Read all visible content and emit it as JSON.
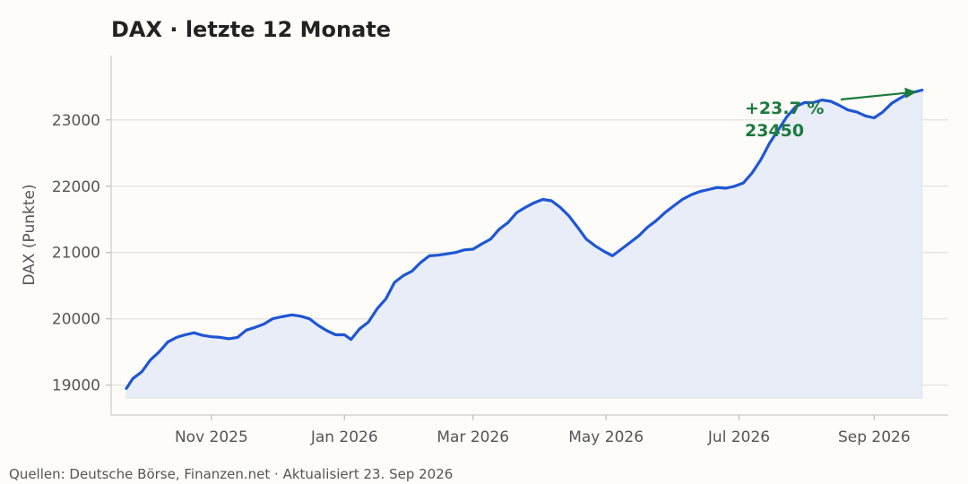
{
  "chart_data": {
    "type": "line",
    "title": "DAX · letzte 12 Monate",
    "ylabel": "DAX (Punkte)",
    "xlabel": "",
    "ylim": [
      18550,
      23970
    ],
    "yticks": [
      19000,
      20000,
      21000,
      22000,
      23000
    ],
    "xlim": [
      "2025-09-16",
      "2026-10-05"
    ],
    "xticks": [
      {
        "date": "2025-11-01",
        "label": "Nov 2025"
      },
      {
        "date": "2026-01-01",
        "label": "Jan 2026"
      },
      {
        "date": "2026-03-01",
        "label": "Mar 2026"
      },
      {
        "date": "2026-05-01",
        "label": "May 2026"
      },
      {
        "date": "2026-07-01",
        "label": "Jul 2026"
      },
      {
        "date": "2026-09-01",
        "label": "Sep 2026"
      }
    ],
    "grid": "horizontal",
    "line_color": "#1f56d4",
    "fill_color": "#e9edf8",
    "annotation_color": "#1b7a3e",
    "annotation": {
      "lines": [
        "+23.7 %",
        "23450"
      ],
      "date": "2026-09-23",
      "value": 23450
    },
    "series": [
      {
        "points": [
          [
            "2025-09-23",
            18950
          ],
          [
            "2025-09-26",
            19100
          ],
          [
            "2025-09-30",
            19200
          ],
          [
            "2025-10-04",
            19380
          ],
          [
            "2025-10-08",
            19500
          ],
          [
            "2025-10-12",
            19650
          ],
          [
            "2025-10-16",
            19720
          ],
          [
            "2025-10-20",
            19760
          ],
          [
            "2025-10-24",
            19790
          ],
          [
            "2025-10-28",
            19750
          ],
          [
            "2025-11-01",
            19730
          ],
          [
            "2025-11-05",
            19720
          ],
          [
            "2025-11-09",
            19700
          ],
          [
            "2025-11-13",
            19720
          ],
          [
            "2025-11-17",
            19830
          ],
          [
            "2025-11-21",
            19870
          ],
          [
            "2025-11-25",
            19920
          ],
          [
            "2025-11-29",
            20000
          ],
          [
            "2025-12-03",
            20030
          ],
          [
            "2025-12-08",
            20060
          ],
          [
            "2025-12-12",
            20040
          ],
          [
            "2025-12-16",
            20000
          ],
          [
            "2025-12-20",
            19900
          ],
          [
            "2025-12-24",
            19820
          ],
          [
            "2025-12-28",
            19760
          ],
          [
            "2026-01-01",
            19760
          ],
          [
            "2026-01-04",
            19690
          ],
          [
            "2026-01-08",
            19850
          ],
          [
            "2026-01-12",
            19950
          ],
          [
            "2026-01-16",
            20150
          ],
          [
            "2026-01-20",
            20300
          ],
          [
            "2026-01-24",
            20550
          ],
          [
            "2026-01-28",
            20650
          ],
          [
            "2026-02-01",
            20720
          ],
          [
            "2026-02-05",
            20850
          ],
          [
            "2026-02-09",
            20950
          ],
          [
            "2026-02-13",
            20960
          ],
          [
            "2026-02-17",
            20980
          ],
          [
            "2026-02-21",
            21000
          ],
          [
            "2026-02-25",
            21040
          ],
          [
            "2026-03-01",
            21050
          ],
          [
            "2026-03-05",
            21130
          ],
          [
            "2026-03-09",
            21200
          ],
          [
            "2026-03-13",
            21350
          ],
          [
            "2026-03-17",
            21450
          ],
          [
            "2026-03-21",
            21600
          ],
          [
            "2026-03-25",
            21680
          ],
          [
            "2026-03-29",
            21750
          ],
          [
            "2026-04-02",
            21800
          ],
          [
            "2026-04-06",
            21780
          ],
          [
            "2026-04-10",
            21680
          ],
          [
            "2026-04-14",
            21550
          ],
          [
            "2026-04-18",
            21380
          ],
          [
            "2026-04-22",
            21200
          ],
          [
            "2026-04-26",
            21100
          ],
          [
            "2026-04-30",
            21020
          ],
          [
            "2026-05-04",
            20950
          ],
          [
            "2026-05-08",
            21050
          ],
          [
            "2026-05-12",
            21150
          ],
          [
            "2026-05-16",
            21250
          ],
          [
            "2026-05-20",
            21380
          ],
          [
            "2026-05-24",
            21480
          ],
          [
            "2026-05-28",
            21600
          ],
          [
            "2026-06-01",
            21700
          ],
          [
            "2026-06-05",
            21800
          ],
          [
            "2026-06-09",
            21870
          ],
          [
            "2026-06-13",
            21920
          ],
          [
            "2026-06-17",
            21950
          ],
          [
            "2026-06-21",
            21980
          ],
          [
            "2026-06-25",
            21970
          ],
          [
            "2026-06-29",
            22000
          ],
          [
            "2026-07-03",
            22050
          ],
          [
            "2026-07-07",
            22200
          ],
          [
            "2026-07-11",
            22400
          ],
          [
            "2026-07-15",
            22650
          ],
          [
            "2026-07-19",
            22850
          ],
          [
            "2026-07-23",
            23050
          ],
          [
            "2026-07-27",
            23200
          ],
          [
            "2026-07-31",
            23260
          ],
          [
            "2026-08-04",
            23260
          ],
          [
            "2026-08-08",
            23300
          ],
          [
            "2026-08-12",
            23280
          ],
          [
            "2026-08-16",
            23220
          ],
          [
            "2026-08-20",
            23150
          ],
          [
            "2026-08-24",
            23120
          ],
          [
            "2026-08-28",
            23060
          ],
          [
            "2026-09-01",
            23030
          ],
          [
            "2026-09-05",
            23120
          ],
          [
            "2026-09-09",
            23250
          ],
          [
            "2026-09-13",
            23330
          ],
          [
            "2026-09-17",
            23400
          ],
          [
            "2026-09-23",
            23450
          ]
        ]
      }
    ]
  },
  "source": "Quellen: Deutsche Börse, Finanzen.net · Aktualisiert 23. Sep 2026"
}
